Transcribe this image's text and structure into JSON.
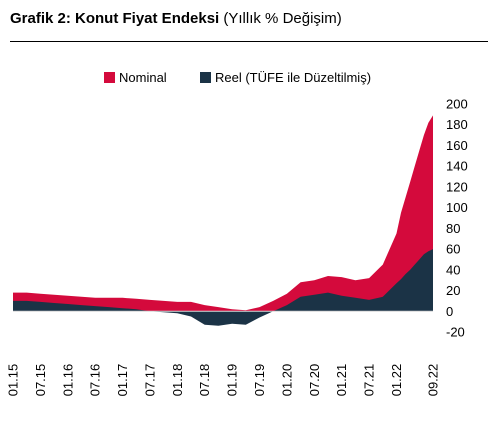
{
  "title": {
    "bold": "Grafik 2: Konut Fiyat Endeksi",
    "normal": "(Yıllık % Değişim)"
  },
  "colors": {
    "nominal": "#d40a3c",
    "reel": "#1b3346",
    "zero_line": "#d9d9d9"
  },
  "legend": [
    {
      "label": "Nominal",
      "color": "#d40a3c"
    },
    {
      "label": "Reel (TÜFE ile Düzeltilmiş)",
      "color": "#1b3346"
    }
  ],
  "chart_data": {
    "type": "area",
    "title": "Grafik 2: Konut Fiyat Endeksi (Yıllık % Değişim)",
    "xlabel": "",
    "ylabel": "",
    "ylim": [
      -20,
      200
    ],
    "yticks": [
      -20,
      0,
      20,
      40,
      60,
      80,
      100,
      120,
      140,
      160,
      180,
      200
    ],
    "y_axis_side": "right",
    "grid": false,
    "legend_position": "top",
    "x_tick_labels": [
      "01.15",
      "07.15",
      "01.16",
      "07.16",
      "01.17",
      "07.17",
      "01.18",
      "07.18",
      "01.19",
      "07.19",
      "01.20",
      "07.20",
      "01.21",
      "07.21",
      "01.22",
      "09.22"
    ],
    "x": [
      "01.15",
      "04.15",
      "07.15",
      "10.15",
      "01.16",
      "04.16",
      "07.16",
      "10.16",
      "01.17",
      "04.17",
      "07.17",
      "10.17",
      "01.18",
      "04.18",
      "07.18",
      "10.18",
      "01.19",
      "04.19",
      "07.19",
      "10.19",
      "01.20",
      "04.20",
      "07.20",
      "10.20",
      "01.21",
      "04.21",
      "07.21",
      "10.21",
      "01.22",
      "02.22",
      "03.22",
      "04.22",
      "05.22",
      "06.22",
      "07.22",
      "08.22",
      "09.22"
    ],
    "series": [
      {
        "name": "Nominal",
        "values": [
          18,
          18,
          17,
          16,
          15,
          14,
          13,
          13,
          13,
          12,
          11,
          10,
          9,
          9,
          6,
          4,
          2,
          1,
          4,
          10,
          17,
          28,
          30,
          34,
          33,
          30,
          32,
          45,
          75,
          95,
          110,
          125,
          140,
          155,
          170,
          182,
          189
        ]
      },
      {
        "name": "Reel (TÜFE ile Düzeltilmiş)",
        "values": [
          10,
          10,
          9,
          8,
          7,
          6,
          5,
          4,
          3,
          2,
          0,
          -1,
          -2,
          -5,
          -13,
          -14,
          -12,
          -13,
          -6,
          0,
          6,
          14,
          16,
          18,
          15,
          13,
          11,
          14,
          27,
          31,
          36,
          40,
          45,
          50,
          55,
          58,
          60
        ]
      }
    ]
  }
}
